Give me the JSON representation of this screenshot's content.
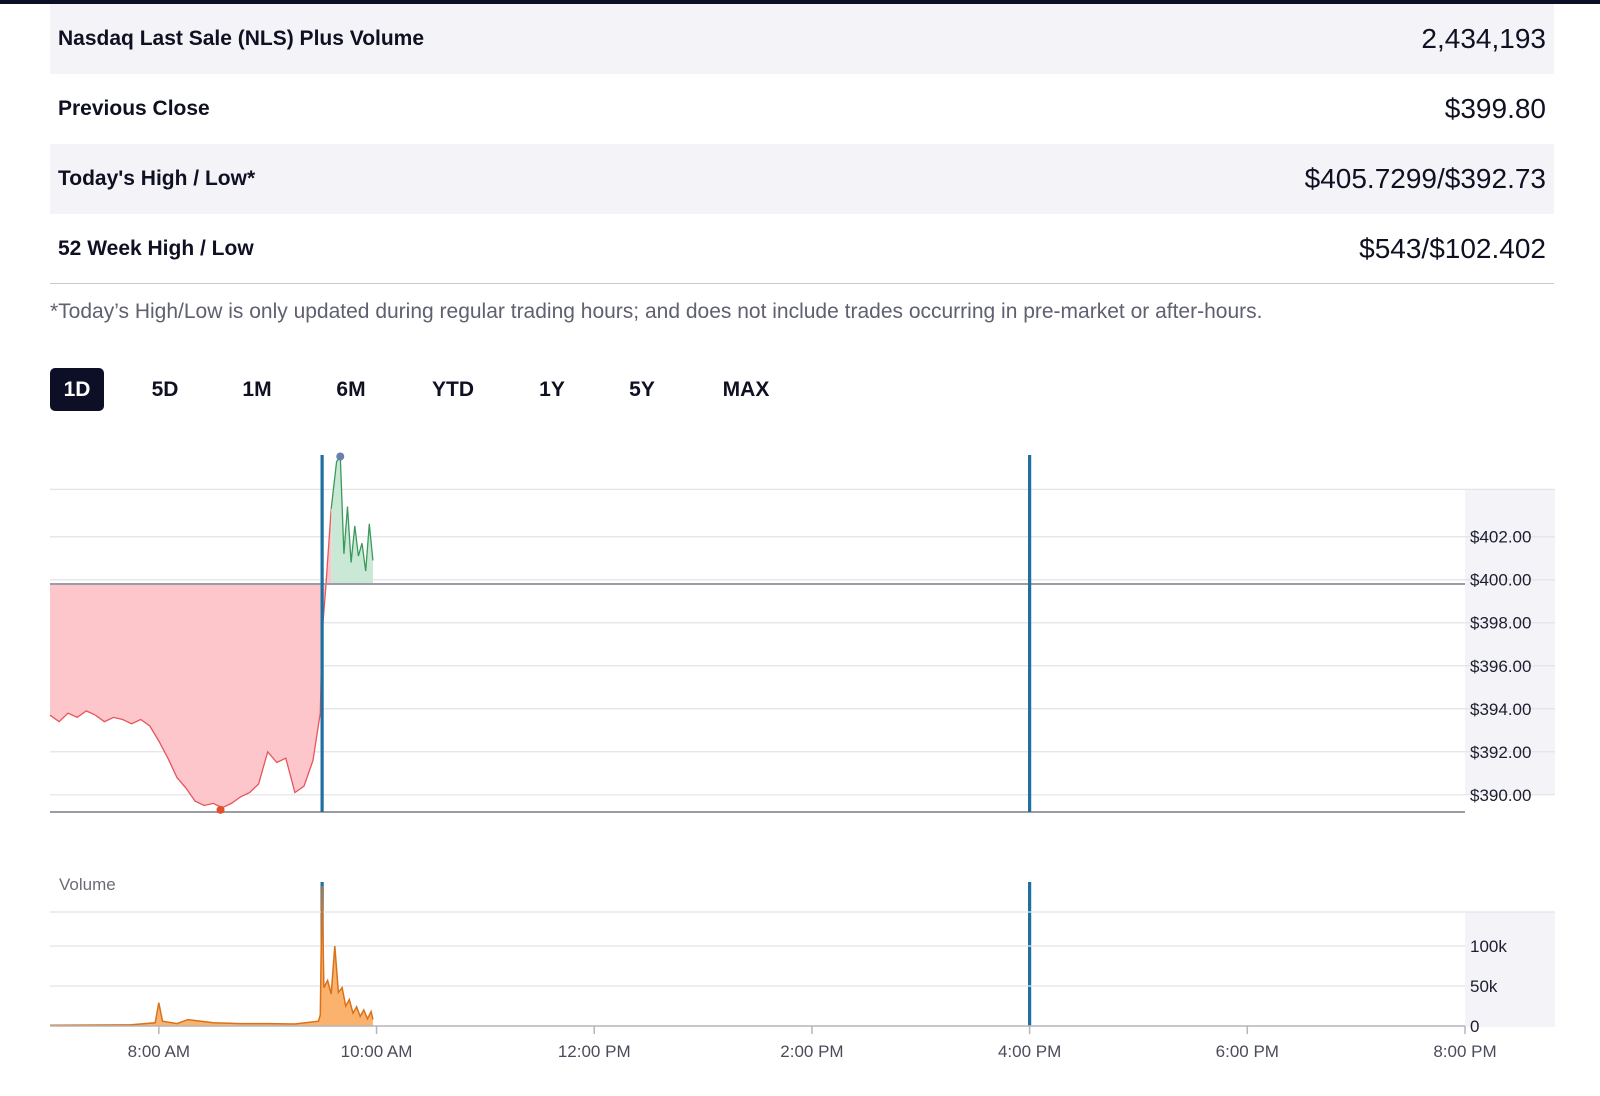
{
  "stats": [
    {
      "label": "Nasdaq Last Sale (NLS) Plus Volume",
      "value": "2,434,193"
    },
    {
      "label": "Previous Close",
      "value": "$399.80"
    },
    {
      "label": "Today's High / Low*",
      "value": "$405.7299/$392.73"
    },
    {
      "label": "52 Week High / Low",
      "value": "$543/$102.402"
    }
  ],
  "footnote": "*Today’s High/Low is only updated during regular trading hours; and does not include trades occurring in pre-market or after-hours.",
  "range_tabs": [
    "1D",
    "5D",
    "1M",
    "6M",
    "YTD",
    "1Y",
    "5Y",
    "MAX"
  ],
  "active_tab": "1D",
  "colors": {
    "dark": "#0c0f26",
    "down_fill": "#fcc6cb",
    "down_line": "#e8545c",
    "up_fill": "#c9e8d5",
    "up_line": "#3b9a5b",
    "session_line": "#1f6fa0",
    "volume_fill": "#fbb26c",
    "volume_line": "#d9711a",
    "high_marker": "#6a7fb0",
    "low_marker": "#e2502b"
  },
  "chart_data": [
    {
      "type": "area",
      "previous_close": 399.8,
      "y_ticks": [
        "$402.00",
        "$400.00",
        "$398.00",
        "$396.00",
        "$394.00",
        "$392.00",
        "$390.00"
      ],
      "ylim": [
        389.2,
        405.8
      ],
      "x_ticks": [
        "8:00 AM",
        "10:00 AM",
        "12:00 PM",
        "2:00 PM",
        "4:00 PM",
        "6:00 PM",
        "8:00 PM"
      ],
      "xlim_minutes": [
        420,
        1200
      ],
      "session_markers": [
        "9:30 AM",
        "4:00 PM"
      ],
      "high": {
        "time": "9:40 AM",
        "value": 405.73
      },
      "low": {
        "time": "8:34 AM",
        "value": 389.3
      },
      "x": [
        "7:00 AM",
        "7:05 AM",
        "7:10 AM",
        "7:15 AM",
        "7:20 AM",
        "7:25 AM",
        "7:30 AM",
        "7:35 AM",
        "7:40 AM",
        "7:45 AM",
        "7:50 AM",
        "7:55 AM",
        "8:00 AM",
        "8:05 AM",
        "8:10 AM",
        "8:15 AM",
        "8:20 AM",
        "8:25 AM",
        "8:30 AM",
        "8:35 AM",
        "8:40 AM",
        "8:45 AM",
        "8:50 AM",
        "8:55 AM",
        "9:00 AM",
        "9:05 AM",
        "9:10 AM",
        "9:15 AM",
        "9:20 AM",
        "9:25 AM",
        "9:29 AM",
        "9:30 AM",
        "9:32 AM",
        "9:35 AM",
        "9:38 AM",
        "9:40 AM",
        "9:42 AM",
        "9:44 AM",
        "9:46 AM",
        "9:48 AM",
        "9:50 AM",
        "9:52 AM",
        "9:54 AM",
        "9:56 AM",
        "9:58 AM"
      ],
      "values": [
        393.7,
        393.4,
        393.8,
        393.6,
        393.9,
        393.7,
        393.4,
        393.6,
        393.5,
        393.3,
        393.5,
        393.2,
        392.5,
        391.7,
        390.8,
        390.3,
        389.7,
        389.5,
        389.6,
        389.4,
        389.6,
        389.9,
        390.1,
        390.5,
        392.0,
        391.5,
        391.7,
        390.1,
        390.4,
        391.6,
        393.8,
        397.5,
        399.6,
        403.3,
        405.5,
        405.73,
        401.2,
        403.4,
        400.8,
        402.5,
        401.1,
        401.7,
        400.4,
        402.6,
        400.9
      ]
    },
    {
      "type": "area",
      "title": "Volume",
      "y_ticks": [
        "100k",
        "50k",
        "0"
      ],
      "ylim": [
        0,
        180000
      ],
      "x": [
        "7:00 AM",
        "7:45 AM",
        "7:58 AM",
        "8:00 AM",
        "8:02 AM",
        "8:10 AM",
        "8:16 AM",
        "8:30 AM",
        "8:45 AM",
        "9:00 AM",
        "9:15 AM",
        "9:28 AM",
        "9:29 AM",
        "9:30 AM",
        "9:31 AM",
        "9:33 AM",
        "9:35 AM",
        "9:37 AM",
        "9:39 AM",
        "9:41 AM",
        "9:43 AM",
        "9:45 AM",
        "9:47 AM",
        "9:49 AM",
        "9:51 AM",
        "9:53 AM",
        "9:55 AM",
        "9:57 AM",
        "9:58 AM"
      ],
      "values": [
        1000,
        1500,
        4000,
        29000,
        6000,
        3000,
        8000,
        4000,
        3000,
        3000,
        2500,
        6000,
        14000,
        175000,
        48000,
        57000,
        40000,
        100000,
        42000,
        48000,
        25000,
        33000,
        16000,
        24000,
        12000,
        20000,
        9000,
        18000,
        8000
      ]
    }
  ]
}
